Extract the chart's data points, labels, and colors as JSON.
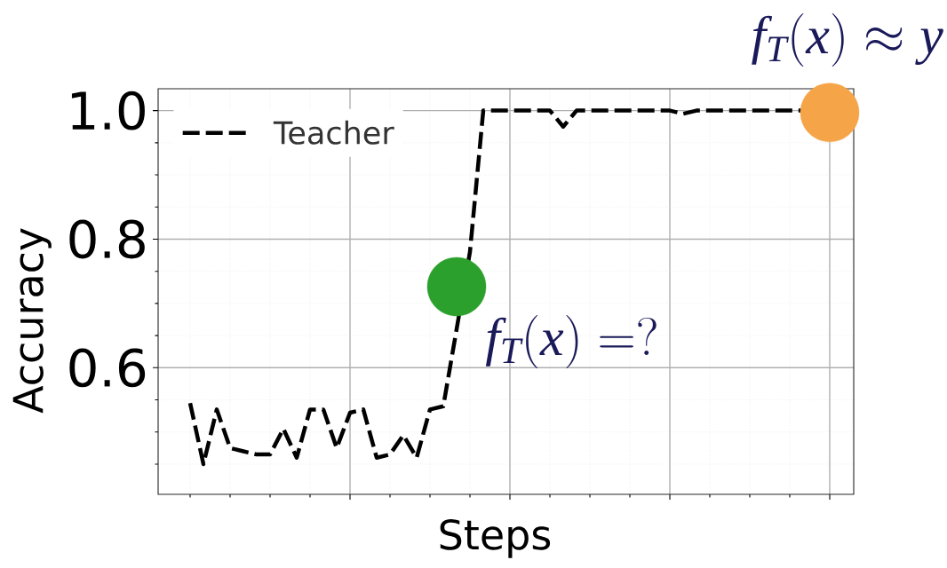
{
  "chart_data": {
    "type": "line",
    "xlabel": "Steps",
    "ylabel": "Accuracy",
    "categories": [
      null,
      null,
      null,
      null,
      null,
      null,
      null,
      null,
      null,
      null,
      null,
      null,
      null,
      null,
      null,
      null,
      null,
      null,
      null,
      null,
      null,
      null,
      null,
      null,
      null,
      null,
      null,
      null,
      null,
      null,
      null,
      null,
      null,
      null,
      null,
      null,
      null,
      null,
      null,
      null,
      null,
      null,
      null,
      null,
      null,
      null,
      null,
      null,
      null
    ],
    "series": [
      {
        "name": "Teacher",
        "color": "#000000",
        "line_style": "dashed",
        "marker": "none",
        "values": [
          0.545,
          0.45,
          0.535,
          0.475,
          0.47,
          0.465,
          0.465,
          0.505,
          0.46,
          0.535,
          0.535,
          0.475,
          0.53,
          0.535,
          0.46,
          0.465,
          0.495,
          0.46,
          0.535,
          0.54,
          null,
          0.78,
          1.0,
          1.0,
          1.0,
          1.0,
          1.0,
          1.0,
          0.975,
          1.0,
          1.0,
          1.0,
          1.0,
          1.0,
          1.0,
          1.0,
          1.0,
          0.995,
          1.0,
          1.0,
          1.0,
          1.0,
          1.0,
          1.0,
          1.0,
          1.0,
          1.0,
          null,
          null
        ]
      },
      {
        "type": "scatter",
        "color": "#2ca02c",
        "marker": "circle",
        "values": [
          null,
          null,
          null,
          null,
          null,
          null,
          null,
          null,
          null,
          null,
          null,
          null,
          null,
          null,
          null,
          null,
          null,
          null,
          null,
          null,
          0.726,
          null,
          null,
          null,
          null,
          null,
          null,
          null,
          null,
          null,
          null,
          null,
          null,
          null,
          null,
          null,
          null,
          null,
          null,
          null,
          null,
          null,
          null,
          null,
          null,
          null,
          null,
          null,
          null
        ]
      },
      {
        "type": "scatter",
        "color": "#f5a447",
        "marker": "circle",
        "values": [
          null,
          null,
          null,
          null,
          null,
          null,
          null,
          null,
          null,
          null,
          null,
          null,
          null,
          null,
          null,
          null,
          null,
          null,
          null,
          null,
          null,
          null,
          null,
          null,
          null,
          null,
          null,
          null,
          null,
          null,
          null,
          null,
          null,
          null,
          null,
          null,
          null,
          null,
          null,
          null,
          null,
          null,
          null,
          null,
          null,
          null,
          null,
          null,
          0.997
        ]
      }
    ],
    "ylim": [
      0.403,
      1.034
    ],
    "yticks": [
      0.6,
      0.8,
      {
        "value": 1,
        "label": "1.0"
      }
    ],
    "tick_labels": "y",
    "grid": true,
    "legend": "top left",
    "annotations": [
      "f_T(x) = ?",
      "f_T(x) \\approx y"
    ]
  }
}
